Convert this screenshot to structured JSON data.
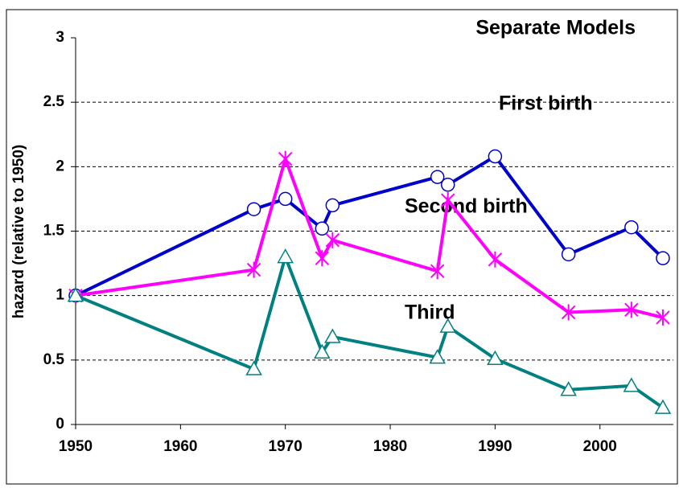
{
  "chart_data": {
    "type": "line",
    "title": "Separate Models",
    "y_label": "hazard (relative to 1950)",
    "annotations": [
      "First birth",
      "Second birth",
      "Third"
    ],
    "x": [
      1950,
      1967,
      1970,
      1973.5,
      1974.5,
      1984.5,
      1985.5,
      1990,
      1997,
      2003,
      2006
    ],
    "series": [
      {
        "name": "First birth",
        "color": "#0000cc",
        "marker": "circle",
        "values": [
          1.0,
          1.67,
          1.75,
          1.52,
          1.7,
          1.92,
          1.86,
          2.08,
          1.32,
          1.53,
          1.29
        ]
      },
      {
        "name": "Second birth",
        "color": "#ff00ff",
        "marker": "star",
        "values": [
          1.0,
          1.2,
          2.06,
          1.29,
          1.43,
          1.19,
          1.74,
          1.28,
          0.87,
          0.89,
          0.83
        ]
      },
      {
        "name": "Third",
        "color": "#008080",
        "marker": "triangle",
        "values": [
          1.0,
          0.43,
          1.3,
          0.56,
          0.68,
          0.52,
          0.76,
          0.51,
          0.27,
          0.3,
          0.13
        ]
      }
    ],
    "xlim": [
      1950,
      2007
    ],
    "xticks": [
      1950,
      1960,
      1970,
      1980,
      1990,
      2000
    ],
    "ylim": [
      0,
      3
    ],
    "yticks": [
      0,
      0.5,
      1,
      1.5,
      2,
      2.5,
      3
    ],
    "grid": true
  }
}
